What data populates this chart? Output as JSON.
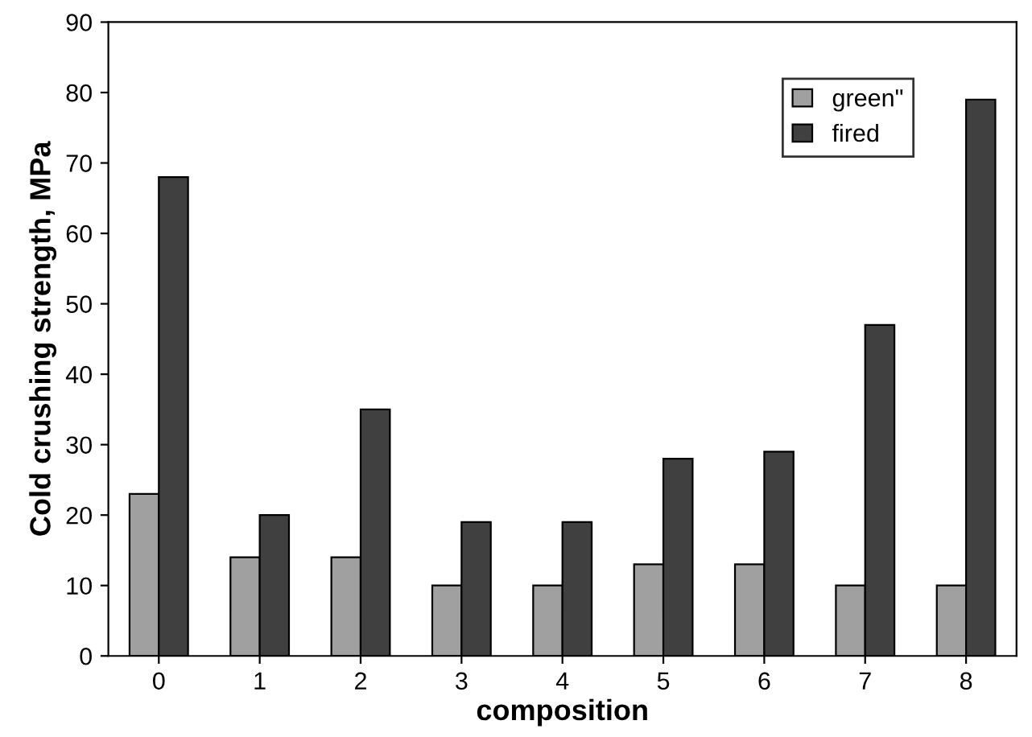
{
  "chart_data": {
    "type": "bar",
    "xlabel": "composition",
    "ylabel": "Cold crushing strength, MPa",
    "categories": [
      "0",
      "1",
      "2",
      "3",
      "4",
      "5",
      "6",
      "7",
      "8"
    ],
    "series": [
      {
        "name": "green\"",
        "color": "#a0a0a0",
        "values": [
          23,
          14,
          14,
          10,
          10,
          13,
          13,
          10,
          10
        ]
      },
      {
        "name": "fired",
        "color": "#404040",
        "values": [
          68,
          20,
          35,
          19,
          19,
          28,
          29,
          47,
          79
        ]
      }
    ],
    "ylim": [
      0,
      90
    ],
    "yticks": [
      0,
      10,
      20,
      30,
      40,
      50,
      60,
      70,
      80,
      90
    ],
    "grid": false,
    "legend": "top right"
  }
}
